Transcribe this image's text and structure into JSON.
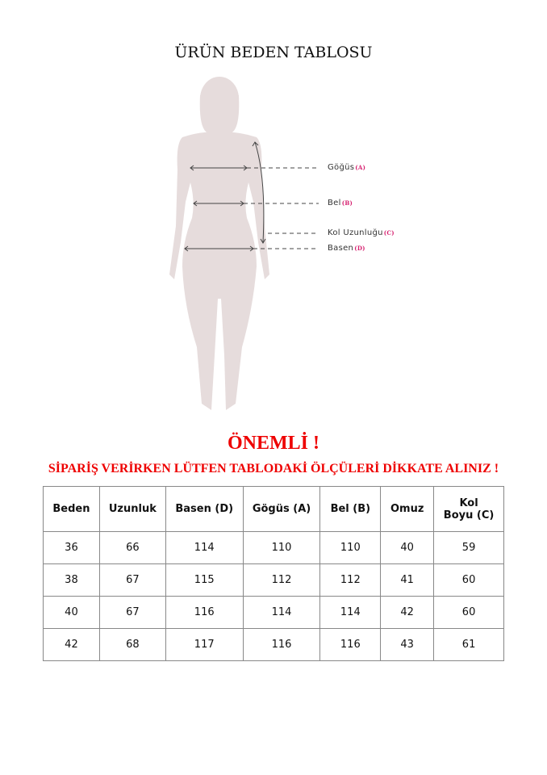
{
  "title": "ÜRÜN BEDEN TABLOSU",
  "diagram": {
    "labels": [
      {
        "name": "Göğüs",
        "code": "(A)"
      },
      {
        "name": "Bel",
        "code": "(B)"
      },
      {
        "name": "Kol Uzunluğu",
        "code": "(C)"
      },
      {
        "name": "Basen",
        "code": "(D)"
      }
    ],
    "silhouette_color": "#e6dcdc"
  },
  "important": "ÖNEMLİ !",
  "warning": "SİPARİŞ VERİRKEN LÜTFEN TABLODAKİ ÖLÇÜLERİ DİKKATE ALINIZ !",
  "table": {
    "headers": [
      "Beden",
      "Uzunluk",
      "Basen (D)",
      "Gögüs (A)",
      "Bel (B)",
      "Omuz",
      "Kol\nBoyu (C)"
    ],
    "rows": [
      [
        "36",
        "66",
        "114",
        "110",
        "110",
        "40",
        "59"
      ],
      [
        "38",
        "67",
        "115",
        "112",
        "112",
        "41",
        "60"
      ],
      [
        "40",
        "67",
        "116",
        "114",
        "114",
        "42",
        "60"
      ],
      [
        "42",
        "68",
        "117",
        "116",
        "116",
        "43",
        "61"
      ]
    ]
  }
}
